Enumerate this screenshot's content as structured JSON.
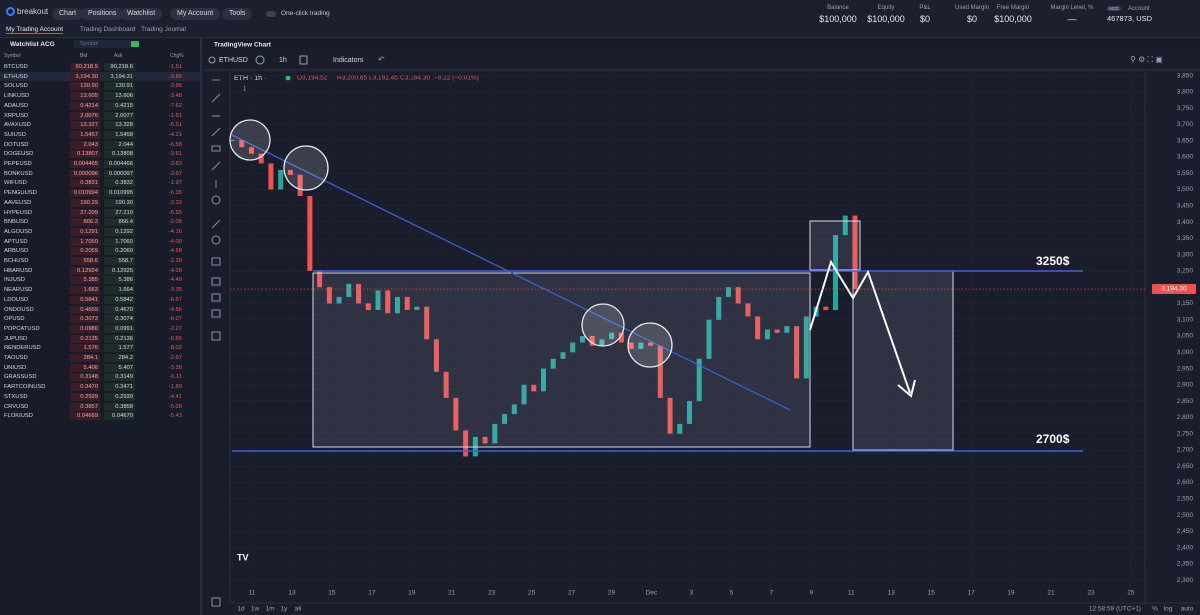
{
  "header": {
    "logo": "breakout",
    "nav": [
      "Chart",
      "Positions",
      "Watchlist"
    ],
    "account_menu": "My Account",
    "tools_menu": "Tools",
    "one_click": "One-click trading",
    "stats": [
      {
        "label": "Balance",
        "value": "$100,000"
      },
      {
        "label": "Equity",
        "value": "$100,000"
      },
      {
        "label": "P&L",
        "value": "$0"
      },
      {
        "label": "Used Margin",
        "value": "$0"
      },
      {
        "label": "Free Margin",
        "value": "$100,000"
      },
      {
        "label": "Margin Level, %",
        "value": "—"
      }
    ],
    "account": {
      "badge": "ACG",
      "label": "Account",
      "id": "467873, USD"
    }
  },
  "tabs": [
    "My Trading Account",
    "Trading Dashboard",
    "Trading Journal"
  ],
  "watchlist": {
    "title": "Watchlist ACG",
    "search": "Symbol",
    "columns": [
      "Symbol",
      "Bid",
      "Ask",
      "Chg%"
    ],
    "rows": [
      [
        "BTCUSD",
        "90,218.5",
        "90,218.6",
        "-1.51"
      ],
      [
        "ETHUSD",
        "3,194.30",
        "3,194.31",
        "-3.86"
      ],
      [
        "SOLUSD",
        "130.90",
        "130.91",
        "-3.86"
      ],
      [
        "LINKUSD",
        "13.605",
        "13.606",
        "-3.48"
      ],
      [
        "ADAUSD",
        "0.4214",
        "0.4215",
        "-7.62"
      ],
      [
        "XRPUSD",
        "2.0076",
        "2.0077",
        "-1.61"
      ],
      [
        "AVAXUSD",
        "13.327",
        "13.328",
        "-5.51"
      ],
      [
        "SUIUSD",
        "1.5457",
        "1.5458",
        "-4.21"
      ],
      [
        "DOTUSD",
        "2.043",
        "2.044",
        "-6.58"
      ],
      [
        "DOGEUSD",
        "0.13807",
        "0.13808",
        "-3.61"
      ],
      [
        "PEPEUSD",
        "0.004465",
        "0.004466",
        "-3.83"
      ],
      [
        "BONKUSD",
        "0.000096",
        "0.000097",
        "-3.67"
      ],
      [
        "WIFUSD",
        "0.3831",
        "0.3832",
        "-1.97"
      ],
      [
        "PENGUUSD",
        "0.010994",
        "0.010995",
        "-6.35"
      ],
      [
        "AAVEUSD",
        "190.29",
        "190.30",
        "-3.32"
      ],
      [
        "HYPEUSD",
        "27.209",
        "27.210",
        "-5.55"
      ],
      [
        "BNBUSD",
        "866.3",
        "866.4",
        "-2.08"
      ],
      [
        "ALGOUSD",
        "0.1291",
        "0.1292",
        "-4.16"
      ],
      [
        "APTUSD",
        "1.7050",
        "1.7060",
        "-4.00"
      ],
      [
        "ARBUSD",
        "0.2059",
        "0.2060",
        "-4.68"
      ],
      [
        "BCHUSD",
        "558.6",
        "558.7",
        "-2.39"
      ],
      [
        "HBARUSD",
        "0.12924",
        "0.12925",
        "-4.00"
      ],
      [
        "INJUSD",
        "5.385",
        "5.386",
        "-4.49"
      ],
      [
        "NEARUSD",
        "1.663",
        "1.664",
        "-3.35"
      ],
      [
        "LDOUSD",
        "0.5841",
        "0.5842",
        "-6.67"
      ],
      [
        "ONDOUSD",
        "0.4669",
        "0.4670",
        "-4.56"
      ],
      [
        "OPUSD",
        "0.3073",
        "0.3074",
        "-6.07"
      ],
      [
        "POPCATUSD",
        "0.0980",
        "0.0991",
        "-2.27"
      ],
      [
        "JUPUSD",
        "0.2135",
        "0.2136",
        "-6.65"
      ],
      [
        "RENDERUSD",
        "1.576",
        "1.577",
        "-8.02"
      ],
      [
        "TAOUSD",
        "284.1",
        "284.2",
        "-2.67"
      ],
      [
        "UNIUSD",
        "5.406",
        "5.407",
        "-3.38"
      ],
      [
        "GRASSUSD",
        "0.3148",
        "0.3149",
        "-6.11"
      ],
      [
        "FARTCOINUSD",
        "0.3470",
        "0.3471",
        "-1.89"
      ],
      [
        "STXUSD",
        "0.2929",
        "0.2930",
        "-4.41"
      ],
      [
        "CRVUSD",
        "0.3857",
        "0.3858",
        "-5.00"
      ],
      [
        "FLOKIUSD",
        "0.04669",
        "0.04670",
        "-5.43"
      ]
    ]
  },
  "chart": {
    "title": "TradingView Chart",
    "symbol": "ETHUSD",
    "interval": "1h",
    "indicators": "Indicators",
    "legend": {
      "name": "ETH · 1h · ",
      "open": "O3,194.52",
      "high": "H3,200.65",
      "low": "L3,191.45",
      "close": "C3,194.30",
      "change": "−0.22 (−0.01%)",
      "count": "1"
    },
    "annotations": [
      "3250$",
      "2700$"
    ],
    "type": "candlestick",
    "values": [
      3652,
      3630,
      3610,
      3580,
      3500,
      3560,
      3545,
      3480,
      3250,
      3200,
      3150,
      3170,
      3210,
      3150,
      3130,
      3190,
      3120,
      3170,
      3130,
      3140,
      3040,
      2940,
      2860,
      2760,
      2680,
      2740,
      2720,
      2780,
      2810,
      2840,
      2900,
      2880,
      2950,
      2980,
      3000,
      3030,
      3050,
      3020,
      3040,
      3060,
      3030,
      3010,
      3030,
      3020,
      2860,
      2750,
      2780,
      2850,
      2980,
      3100,
      3170,
      3200,
      3150,
      3110,
      3040,
      3070,
      3060,
      3080,
      2920,
      3110,
      3140,
      3130,
      3360,
      3420,
      3194.3
    ],
    "ylim": [
      2239,
      3861
    ],
    "yticks": [
      {
        "value": 3850,
        "label": "3,850"
      },
      {
        "value": 3800,
        "label": "3,800"
      },
      {
        "value": 3750,
        "label": "3,750"
      },
      {
        "value": 3700,
        "label": "3,700"
      },
      {
        "value": 3650,
        "label": "3,650"
      },
      {
        "value": 3600,
        "label": "3,600"
      },
      {
        "value": 3550,
        "label": "3,550"
      },
      {
        "value": 3500,
        "label": "3,500"
      },
      {
        "value": 3450,
        "label": "3,450"
      },
      {
        "value": 3400,
        "label": "3,400"
      },
      {
        "value": 3350,
        "label": "3,350"
      },
      {
        "value": 3300,
        "label": "3,300"
      },
      {
        "value": 3250,
        "label": "3,250"
      },
      {
        "value": 3150,
        "label": "3,150"
      },
      {
        "value": 3100,
        "label": "3,100"
      },
      {
        "value": 3050,
        "label": "3,050"
      },
      {
        "value": 3000,
        "label": "3,000"
      },
      {
        "value": 2950,
        "label": "2,950"
      },
      {
        "value": 2900,
        "label": "2,900"
      },
      {
        "value": 2850,
        "label": "2,850"
      },
      {
        "value": 2800,
        "label": "2,800"
      },
      {
        "value": 2750,
        "label": "2,750"
      },
      {
        "value": 2700,
        "label": "2,700"
      },
      {
        "value": 2650,
        "label": "2,650"
      },
      {
        "value": 2600,
        "label": "2,600"
      },
      {
        "value": 2550,
        "label": "2,550"
      },
      {
        "value": 2500,
        "label": "2,500"
      },
      {
        "value": 2450,
        "label": "2,450"
      },
      {
        "value": 2400,
        "label": "2,400"
      },
      {
        "value": 2350,
        "label": "2,350"
      },
      {
        "value": 2300,
        "label": "2,300"
      }
    ],
    "current_price": {
      "value": 3194.3,
      "label": "3,194.30"
    },
    "x_labels": [
      "11",
      "13",
      "15",
      "17",
      "19",
      "21",
      "23",
      "25",
      "27",
      "29",
      "Dec",
      "3",
      "5",
      "7",
      "9",
      "11",
      "13",
      "15",
      "17",
      "19",
      "21",
      "23",
      "25"
    ],
    "ranges": [
      "1d",
      "1w",
      "1m",
      "1y",
      "all"
    ],
    "clock": "12:58:59 (UTC+1)",
    "scale_options": [
      "%",
      "log",
      "auto"
    ]
  }
}
